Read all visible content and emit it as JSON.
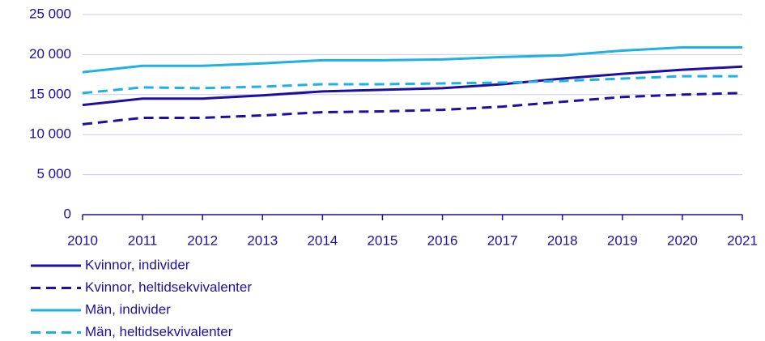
{
  "chart_data": {
    "type": "line",
    "categories": [
      "2010",
      "2011",
      "2012",
      "2013",
      "2014",
      "2015",
      "2016",
      "2017",
      "2018",
      "2019",
      "2020",
      "2021"
    ],
    "series": [
      {
        "name": "Kvinnor, individer",
        "color": "#1e0fa0",
        "style": "solid",
        "values": [
          13700,
          14500,
          14500,
          14900,
          15400,
          15600,
          15800,
          16300,
          17000,
          17600,
          18100,
          18500
        ]
      },
      {
        "name": "Kvinnor, heltidsekvivalenter",
        "color": "#1e0fa0",
        "style": "dashed",
        "values": [
          11300,
          12100,
          12100,
          12400,
          12800,
          12900,
          13100,
          13500,
          14100,
          14700,
          15000,
          15200
        ]
      },
      {
        "name": "Män, individer",
        "color": "#1fb0e6",
        "style": "solid",
        "values": [
          17800,
          18600,
          18600,
          18900,
          19300,
          19300,
          19400,
          19700,
          19900,
          20500,
          20900,
          20900
        ]
      },
      {
        "name": "Män, heltidsekvivalenter",
        "color": "#1fb0e6",
        "style": "dashed",
        "values": [
          15200,
          15900,
          15800,
          16000,
          16300,
          16300,
          16400,
          16500,
          16700,
          17000,
          17300,
          17300
        ]
      }
    ],
    "ylim": [
      0,
      25000
    ],
    "yticks": [
      0,
      {
        "value": 5000,
        "label": "5 000"
      },
      {
        "value": 10000,
        "label": "10 000"
      },
      {
        "value": 15000,
        "label": "15 000"
      },
      {
        "value": 20000,
        "label": "20 000"
      },
      {
        "value": 25000,
        "label": "25 000"
      }
    ],
    "grid": true,
    "legend": "bottom"
  }
}
